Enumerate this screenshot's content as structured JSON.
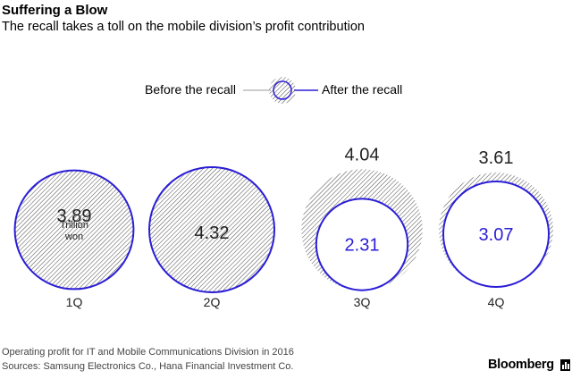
{
  "header": {
    "title": "Suffering a Blow",
    "subtitle": "The recall takes a toll on the mobile division’s profit contribution"
  },
  "legend": {
    "before_label": "Before the recall",
    "after_label": "After the recall"
  },
  "colors": {
    "after_recall": "#2b1ed6",
    "hatch": "#555555",
    "text": "#000000"
  },
  "chart_data": {
    "type": "bubble",
    "title": "Suffering a Blow",
    "subtitle": "The recall takes a toll on the mobile division’s profit contribution",
    "unit_label": "Trillion won",
    "categories": [
      "1Q",
      "2Q",
      "3Q",
      "4Q"
    ],
    "series": [
      {
        "name": "Before the recall",
        "values": [
          3.89,
          4.32,
          4.04,
          3.61
        ]
      },
      {
        "name": "After the recall",
        "values": [
          3.89,
          4.32,
          2.31,
          3.07
        ]
      }
    ],
    "value_labels": [
      "3.89",
      "4.32",
      "4.04",
      "3.61"
    ],
    "after_labels": [
      "",
      "",
      "2.31",
      "3.07"
    ],
    "unit_line1": "Trillion",
    "unit_line2": "won"
  },
  "footer": {
    "note": "Operating profit for IT and Mobile Communications Division in 2016",
    "sources": "Sources: Samsung Electronics Co., Hana Financial Investment Co.",
    "brand": "Bloomberg"
  }
}
